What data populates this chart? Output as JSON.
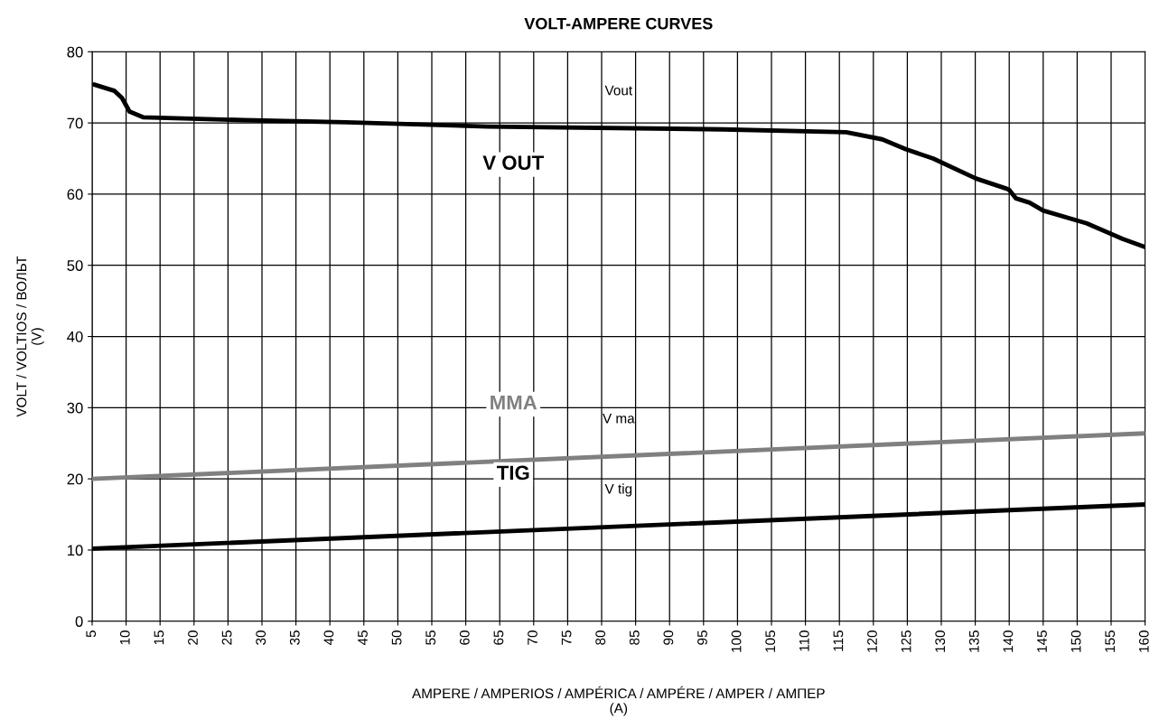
{
  "chart_data": {
    "type": "line",
    "title": "VOLT-AMPERE CURVES",
    "xlabel": "AMPERE / AMPERIOS / AMPÉRICA / AMPÉRE / AMPER / АМПЕР\n(A)",
    "ylabel": "VOLT / VOLTIOS / ВОЛЬТ\n(V)",
    "series": [
      {
        "name": "Vout",
        "color": "#000000",
        "x": [
          5.3,
          8.3,
          9.4,
          10.5,
          12.5,
          27.3,
          42.4,
          63.2,
          97.8,
          116,
          121.3,
          124.8,
          128.8,
          135.1,
          139.5,
          140,
          141,
          143,
          145,
          151.4,
          156.7,
          159.9
        ],
        "values": [
          75.4,
          74.5,
          73.5,
          71.6,
          70.8,
          70.4,
          70.1,
          69.5,
          69.1,
          68.7,
          67.7,
          66.3,
          65.0,
          62.2,
          60.8,
          60.6,
          59.4,
          58.8,
          57.7,
          55.9,
          53.7,
          52.6
        ]
      },
      {
        "name": "V ma",
        "color": "#808080",
        "x": [
          5,
          160
        ],
        "values": [
          20.0,
          26.4
        ]
      },
      {
        "name": "V tig",
        "color": "#000000",
        "x": [
          5,
          160
        ],
        "values": [
          10.2,
          16.4
        ]
      }
    ],
    "annotations": [
      "V OUT",
      "MMA",
      "TIG"
    ],
    "xlim": [
      5,
      160
    ],
    "xticks": [
      5,
      10,
      15,
      20,
      25,
      30,
      35,
      40,
      45,
      50,
      55,
      60,
      65,
      70,
      75,
      80,
      85,
      90,
      95,
      100,
      105,
      110,
      115,
      120,
      125,
      130,
      135,
      140,
      145,
      150,
      155,
      160
    ],
    "ylim": [
      0,
      80
    ],
    "yticks": [
      0,
      10,
      20,
      30,
      40,
      50,
      60,
      70,
      80
    ],
    "grid": true,
    "legend": false,
    "marker": "none",
    "line_style": "solid"
  }
}
